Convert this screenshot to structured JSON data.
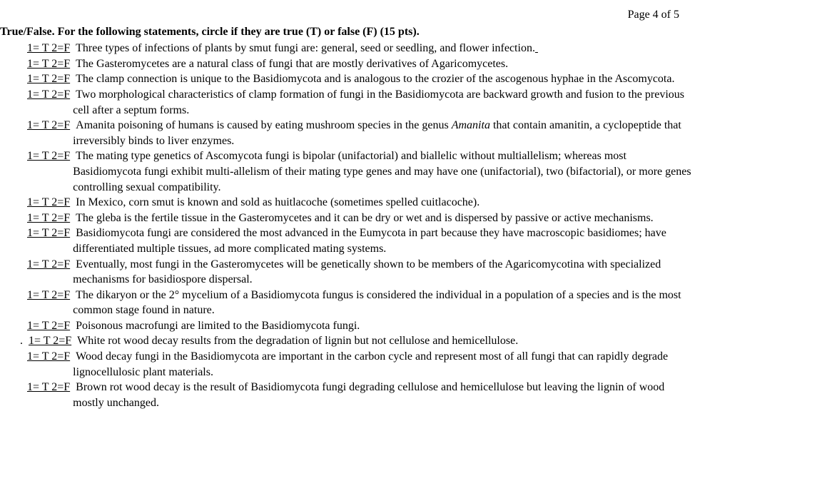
{
  "page_number": "Page 4 of 5",
  "instructions": "True/False. For the following statements, circle if they are true (T) or false (F) (15 pts).",
  "tf_label": "1= T  2=F",
  "questions": [
    "Three types of infections of plants by smut fungi are: general, seed or seedling, and flower infection.",
    "The Gasteromycetes are a natural class of fungi that are mostly derivatives of Agaricomycetes.",
    "The clamp connection is unique to the Basidiomycota and is analogous to the crozier of the ascogenous hyphae in the Ascomycota.",
    "Two morphological characteristics of clamp formation of fungi in the Basidiomycota are backward growth and fusion to the previous cell after a septum forms.",
    "Amanita poisoning of humans is caused by eating mushroom species in the genus ",
    " that contain amanitin, a cyclopeptide that irreversibly binds to liver enzymes.",
    "The mating type genetics of Ascomycota fungi is bipolar (unifactorial) and biallelic without   multiallelism; whereas most Basidiomycota fungi exhibit multi-allelism of their mating type genes  and may have one (unifactorial), two (bifactorial), or more genes controlling sexual compatibility.",
    "In Mexico, corn smut is known and sold as huitlacoche (sometimes spelled cuitlacoche).",
    "The gleba is the fertile tissue in the Gasteromycetes and it can be dry or wet and is dispersed by  passive or active mechanisms.",
    "Basidiomycota fungi are considered the most advanced in the Eumycota in part because they have macroscopic basidiomes; have differentiated multiple tissues, ad more complicated mating systems.",
    "Eventually, most fungi in the Gasteromycetes will be genetically shown to be members of the Agaricomycotina with specialized mechanisms for basidiospore dispersal.",
    "The dikaryon or the 2° mycelium of a Basidiomycota fungus is considered the individual in a population of a species and is the most common stage found in nature.",
    "Poisonous macrofungi are limited to the Basidiomycota fungi.",
    "White rot wood decay results from the  degradation of lignin but not cellulose and hemicellulose.",
    "Wood decay fungi in the Basidiomycota are important in the carbon cycle and represent most of all fungi that can rapidly degrade lignocellulosic plant materials.",
    "Brown rot wood decay is the result of Basidiomycota fungi degrading cellulose and hemicellulose but leaving the lignin of wood mostly unchanged."
  ],
  "amanita_italic": "Amanita"
}
